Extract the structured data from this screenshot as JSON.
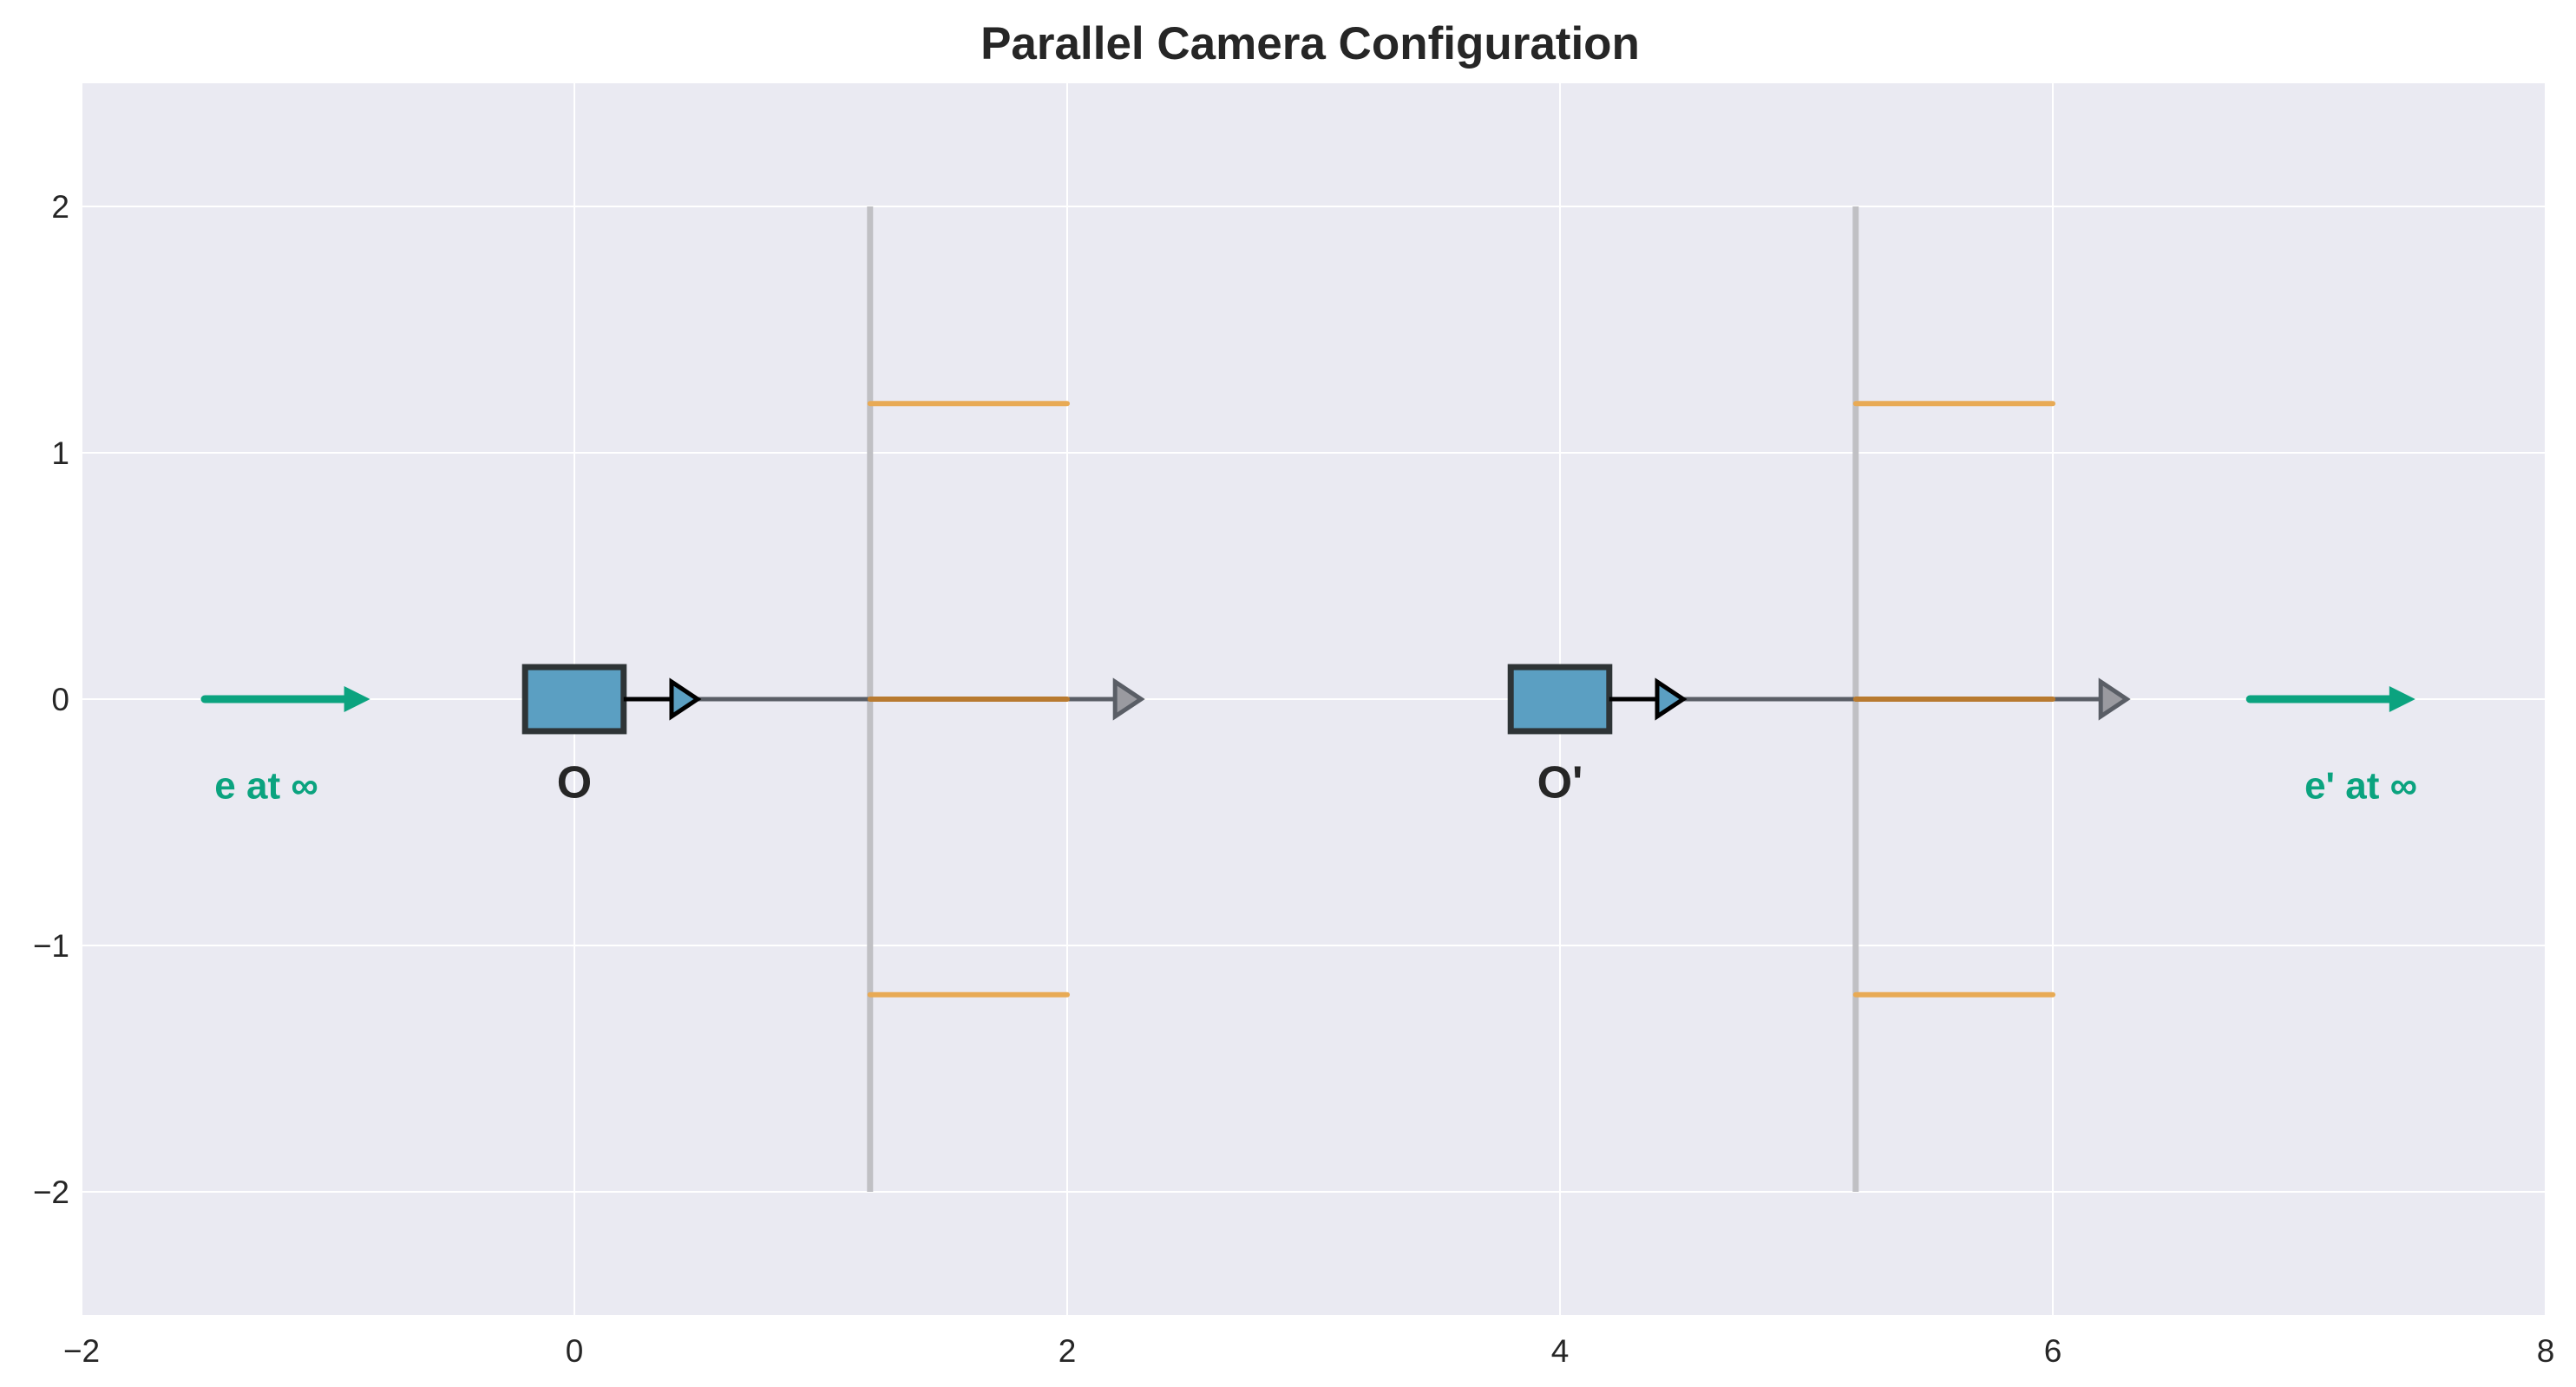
{
  "title": "Parallel Camera Configuration",
  "colors": {
    "background": "#EAEAF2",
    "grid": "#FFFFFF",
    "camera_fill": "#5B9FC2",
    "camera_edge": "#2E3436",
    "image_plane": "#C0C0C4",
    "image_rows": "#E8AA55",
    "axis_line": "#5A5E66",
    "epipole": "#0BA37F"
  },
  "axes": {
    "xlim": [
      -2,
      8
    ],
    "ylim": [
      -2.5,
      2.5
    ],
    "x_ticks": [
      -2,
      0,
      2,
      4,
      6,
      8
    ],
    "y_ticks": [
      -2,
      -1,
      0,
      1,
      2
    ],
    "x_tick_labels": [
      "−2",
      "0",
      "2",
      "4",
      "6",
      "8"
    ],
    "y_tick_labels": [
      "−2",
      "−1",
      "0",
      "1",
      "2"
    ],
    "grid": true
  },
  "cameras": [
    {
      "label": "O",
      "center": [
        0,
        0
      ],
      "body_width": 0.4,
      "body_height": 0.26,
      "direction_arrow": [
        0.2,
        0.5
      ],
      "optical_axis": [
        0.5,
        2.3
      ],
      "image_plane_x": 1.2,
      "image_plane_y": [
        -2,
        2
      ],
      "image_rows": [
        {
          "y": 1.2,
          "x": [
            1.2,
            2.0
          ]
        },
        {
          "y": 0.0,
          "x": [
            1.2,
            2.0
          ]
        },
        {
          "y": -1.2,
          "x": [
            1.2,
            2.0
          ]
        }
      ]
    },
    {
      "label": "O'",
      "center": [
        4,
        0
      ],
      "body_width": 0.4,
      "body_height": 0.26,
      "direction_arrow": [
        4.2,
        4.5
      ],
      "optical_axis": [
        4.5,
        6.3
      ],
      "image_plane_x": 5.2,
      "image_plane_y": [
        -2,
        2
      ],
      "image_rows": [
        {
          "y": 1.2,
          "x": [
            5.2,
            6.0
          ]
        },
        {
          "y": 0.0,
          "x": [
            5.2,
            6.0
          ]
        },
        {
          "y": -1.2,
          "x": [
            5.2,
            6.0
          ]
        }
      ]
    }
  ],
  "epipoles": [
    {
      "label": "e at ∞",
      "arrow_x": [
        -1.5,
        -0.85
      ],
      "y": 0,
      "label_x": -1.25,
      "label_y": -0.35
    },
    {
      "label": "e' at ∞",
      "arrow_x": [
        6.8,
        7.45
      ],
      "y": 0,
      "label_x": 7.25,
      "label_y": -0.35
    }
  ]
}
